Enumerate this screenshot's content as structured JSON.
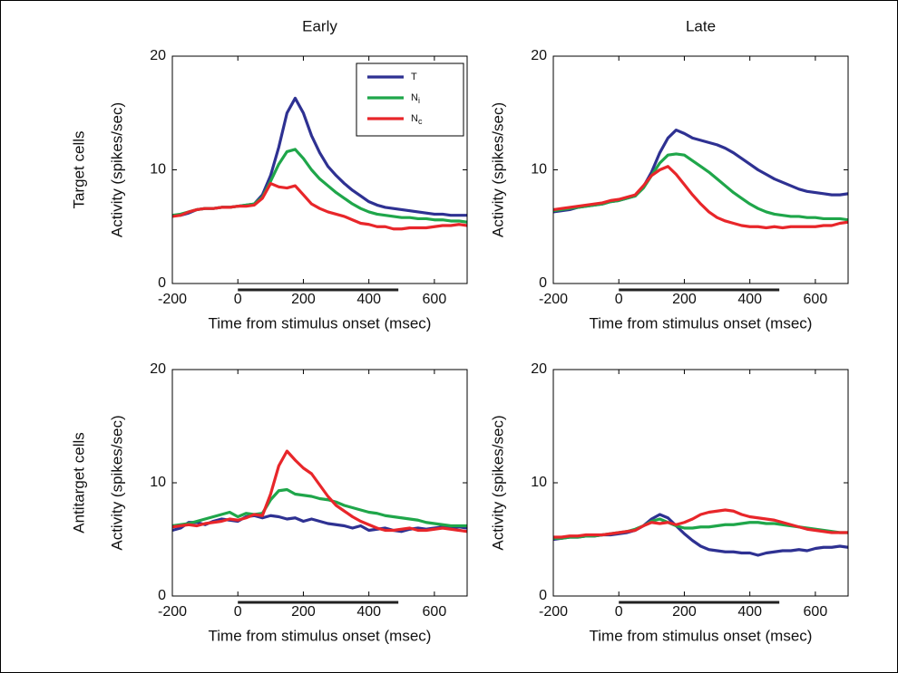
{
  "chart_data": [
    {
      "type": "line",
      "title": "Early",
      "row_label": "Target cells",
      "ylabel": "Activity (spikes/sec)",
      "xlabel": "Time from stimulus onset (msec)",
      "xlim": [
        -200,
        700
      ],
      "xticks": [
        -200,
        0,
        200,
        400,
        600
      ],
      "ylim": [
        0,
        20
      ],
      "yticks": [
        0,
        10,
        20
      ],
      "stimulus_bar": [
        0,
        490
      ],
      "legend": "upper right",
      "x": [
        -200,
        -175,
        -150,
        -125,
        -100,
        -75,
        -50,
        -25,
        0,
        25,
        50,
        75,
        100,
        125,
        150,
        175,
        200,
        225,
        250,
        275,
        300,
        325,
        350,
        375,
        400,
        425,
        450,
        475,
        500,
        525,
        550,
        575,
        600,
        625,
        650,
        675,
        700
      ],
      "series": [
        {
          "name": "T",
          "color": "#2e3192",
          "values": [
            6.0,
            6.0,
            6.2,
            6.5,
            6.6,
            6.6,
            6.7,
            6.7,
            6.8,
            6.9,
            7.0,
            7.8,
            9.5,
            12.0,
            15.0,
            16.3,
            15.0,
            13.0,
            11.5,
            10.3,
            9.5,
            8.8,
            8.2,
            7.7,
            7.2,
            6.9,
            6.7,
            6.6,
            6.5,
            6.4,
            6.3,
            6.2,
            6.1,
            6.1,
            6.0,
            6.0,
            6.0
          ]
        },
        {
          "name": "Ni",
          "color": "#1fa64a",
          "values": [
            6.0,
            6.1,
            6.3,
            6.5,
            6.6,
            6.6,
            6.7,
            6.7,
            6.8,
            6.9,
            7.0,
            7.6,
            9.0,
            10.5,
            11.6,
            11.8,
            11.0,
            10.0,
            9.2,
            8.6,
            8.0,
            7.5,
            7.0,
            6.6,
            6.3,
            6.1,
            6.0,
            5.9,
            5.8,
            5.8,
            5.7,
            5.7,
            5.6,
            5.6,
            5.5,
            5.5,
            5.4
          ]
        },
        {
          "name": "Nc",
          "color": "#e8262a",
          "values": [
            5.9,
            6.0,
            6.3,
            6.5,
            6.6,
            6.6,
            6.7,
            6.7,
            6.8,
            6.8,
            6.9,
            7.5,
            8.8,
            8.5,
            8.4,
            8.6,
            7.8,
            7.0,
            6.6,
            6.3,
            6.1,
            5.9,
            5.6,
            5.3,
            5.2,
            5.0,
            5.0,
            4.8,
            4.8,
            4.9,
            4.9,
            4.9,
            5.0,
            5.1,
            5.1,
            5.2,
            5.1
          ]
        }
      ]
    },
    {
      "type": "line",
      "title": "Late",
      "ylabel": "Activity (spikes/sec)",
      "xlabel": "Time from stimulus onset (msec)",
      "xlim": [
        -200,
        700
      ],
      "xticks": [
        -200,
        0,
        200,
        400,
        600
      ],
      "ylim": [
        0,
        20
      ],
      "yticks": [
        0,
        10,
        20
      ],
      "stimulus_bar": [
        0,
        490
      ],
      "x": [
        -200,
        -175,
        -150,
        -125,
        -100,
        -75,
        -50,
        -25,
        0,
        25,
        50,
        75,
        100,
        125,
        150,
        175,
        200,
        225,
        250,
        275,
        300,
        325,
        350,
        375,
        400,
        425,
        450,
        475,
        500,
        525,
        550,
        575,
        600,
        625,
        650,
        675,
        700
      ],
      "series": [
        {
          "name": "T",
          "color": "#2e3192",
          "values": [
            6.3,
            6.4,
            6.5,
            6.7,
            6.8,
            6.9,
            7.0,
            7.2,
            7.3,
            7.5,
            7.7,
            8.5,
            9.8,
            11.5,
            12.8,
            13.5,
            13.2,
            12.8,
            12.6,
            12.4,
            12.2,
            11.9,
            11.5,
            11.0,
            10.5,
            10.0,
            9.6,
            9.2,
            8.9,
            8.6,
            8.3,
            8.1,
            8.0,
            7.9,
            7.8,
            7.8,
            7.9
          ]
        },
        {
          "name": "Ni",
          "color": "#1fa64a",
          "values": [
            6.4,
            6.5,
            6.6,
            6.7,
            6.8,
            6.9,
            7.0,
            7.2,
            7.3,
            7.5,
            7.7,
            8.4,
            9.5,
            10.6,
            11.3,
            11.4,
            11.3,
            10.8,
            10.3,
            9.8,
            9.2,
            8.6,
            8.0,
            7.5,
            7.0,
            6.6,
            6.3,
            6.1,
            6.0,
            5.9,
            5.9,
            5.8,
            5.8,
            5.7,
            5.7,
            5.7,
            5.6
          ]
        },
        {
          "name": "Nc",
          "color": "#e8262a",
          "values": [
            6.5,
            6.6,
            6.7,
            6.8,
            6.9,
            7.0,
            7.1,
            7.3,
            7.4,
            7.6,
            7.8,
            8.6,
            9.5,
            10.0,
            10.3,
            9.6,
            8.7,
            7.8,
            7.0,
            6.3,
            5.8,
            5.5,
            5.3,
            5.1,
            5.0,
            5.0,
            4.9,
            5.0,
            4.9,
            5.0,
            5.0,
            5.0,
            5.0,
            5.1,
            5.1,
            5.3,
            5.4
          ]
        }
      ]
    },
    {
      "type": "line",
      "row_label": "Antitarget cells",
      "ylabel": "Activity (spikes/sec)",
      "xlabel": "Time from stimulus onset (msec)",
      "xlim": [
        -200,
        700
      ],
      "xticks": [
        -200,
        0,
        200,
        400,
        600
      ],
      "ylim": [
        0,
        20
      ],
      "yticks": [
        0,
        10,
        20
      ],
      "stimulus_bar": [
        0,
        490
      ],
      "x": [
        -200,
        -175,
        -150,
        -125,
        -100,
        -75,
        -50,
        -25,
        0,
        25,
        50,
        75,
        100,
        125,
        150,
        175,
        200,
        225,
        250,
        275,
        300,
        325,
        350,
        375,
        400,
        425,
        450,
        475,
        500,
        525,
        550,
        575,
        600,
        625,
        650,
        675,
        700
      ],
      "series": [
        {
          "name": "T",
          "color": "#2e3192",
          "values": [
            5.8,
            6.0,
            6.5,
            6.5,
            6.3,
            6.6,
            6.8,
            6.7,
            6.6,
            7.0,
            7.1,
            6.9,
            7.1,
            7.0,
            6.8,
            6.9,
            6.6,
            6.8,
            6.6,
            6.4,
            6.3,
            6.2,
            6.0,
            6.2,
            5.8,
            5.9,
            6.0,
            5.8,
            5.7,
            5.9,
            6.0,
            5.9,
            6.0,
            6.1,
            6.0,
            6.1,
            6.0
          ]
        },
        {
          "name": "Ni",
          "color": "#1fa64a",
          "values": [
            6.2,
            6.3,
            6.4,
            6.6,
            6.8,
            7.0,
            7.2,
            7.4,
            7.0,
            7.3,
            7.2,
            7.3,
            8.5,
            9.3,
            9.4,
            9.0,
            8.9,
            8.8,
            8.6,
            8.5,
            8.3,
            8.0,
            7.8,
            7.6,
            7.4,
            7.3,
            7.1,
            7.0,
            6.9,
            6.8,
            6.7,
            6.5,
            6.4,
            6.3,
            6.2,
            6.2,
            6.2
          ]
        },
        {
          "name": "Nc",
          "color": "#e8262a",
          "values": [
            6.1,
            6.2,
            6.3,
            6.2,
            6.4,
            6.5,
            6.6,
            6.8,
            6.7,
            6.9,
            7.2,
            7.1,
            9.0,
            11.5,
            12.8,
            12.0,
            11.3,
            10.8,
            9.8,
            8.8,
            8.0,
            7.5,
            7.0,
            6.6,
            6.3,
            6.0,
            5.8,
            5.8,
            5.9,
            6.0,
            5.8,
            5.8,
            5.9,
            6.0,
            5.9,
            5.8,
            5.7
          ]
        }
      ]
    },
    {
      "type": "line",
      "ylabel": "Activity (spikes/sec)",
      "xlabel": "Time from stimulus onset (msec)",
      "xlim": [
        -200,
        700
      ],
      "xticks": [
        -200,
        0,
        200,
        400,
        600
      ],
      "ylim": [
        0,
        20
      ],
      "yticks": [
        0,
        10,
        20
      ],
      "stimulus_bar": [
        0,
        490
      ],
      "x": [
        -200,
        -175,
        -150,
        -125,
        -100,
        -75,
        -50,
        -25,
        0,
        25,
        50,
        75,
        100,
        125,
        150,
        175,
        200,
        225,
        250,
        275,
        300,
        325,
        350,
        375,
        400,
        425,
        450,
        475,
        500,
        525,
        550,
        575,
        600,
        625,
        650,
        675,
        700
      ],
      "series": [
        {
          "name": "T",
          "color": "#2e3192",
          "values": [
            5.0,
            5.1,
            5.2,
            5.2,
            5.3,
            5.3,
            5.4,
            5.4,
            5.5,
            5.6,
            5.8,
            6.2,
            6.8,
            7.2,
            6.9,
            6.2,
            5.5,
            4.9,
            4.4,
            4.1,
            4.0,
            3.9,
            3.9,
            3.8,
            3.8,
            3.6,
            3.8,
            3.9,
            4.0,
            4.0,
            4.1,
            4.0,
            4.2,
            4.3,
            4.3,
            4.4,
            4.3
          ]
        },
        {
          "name": "Ni",
          "color": "#1fa64a",
          "values": [
            5.1,
            5.1,
            5.2,
            5.2,
            5.3,
            5.3,
            5.4,
            5.5,
            5.6,
            5.7,
            5.9,
            6.2,
            6.6,
            6.8,
            6.5,
            6.2,
            6.0,
            6.0,
            6.1,
            6.1,
            6.2,
            6.3,
            6.3,
            6.4,
            6.5,
            6.5,
            6.4,
            6.4,
            6.3,
            6.2,
            6.1,
            6.0,
            5.9,
            5.8,
            5.7,
            5.6,
            5.6
          ]
        },
        {
          "name": "Nc",
          "color": "#e8262a",
          "values": [
            5.2,
            5.2,
            5.3,
            5.3,
            5.4,
            5.4,
            5.4,
            5.5,
            5.6,
            5.7,
            5.8,
            6.2,
            6.5,
            6.4,
            6.5,
            6.3,
            6.5,
            6.8,
            7.2,
            7.4,
            7.5,
            7.6,
            7.5,
            7.2,
            7.0,
            6.9,
            6.8,
            6.7,
            6.5,
            6.3,
            6.1,
            5.9,
            5.8,
            5.7,
            5.6,
            5.6,
            5.6
          ]
        }
      ]
    }
  ]
}
